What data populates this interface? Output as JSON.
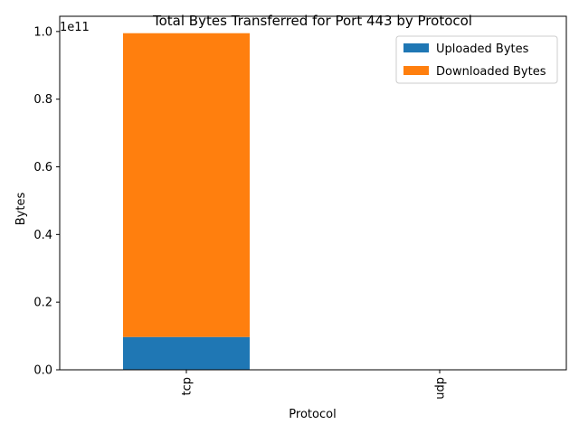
{
  "chart_data": {
    "type": "bar",
    "stacked": true,
    "title": "Total Bytes Transferred for Port 443 by Protocol",
    "xlabel": "Protocol",
    "ylabel": "Bytes",
    "categories": [
      "tcp",
      "udp"
    ],
    "series": [
      {
        "name": "Uploaded Bytes",
        "values": [
          9700000000,
          0
        ],
        "color": "#1f77b4"
      },
      {
        "name": "Downloaded Bytes",
        "values": [
          89800000000,
          0
        ],
        "color": "#ff7f0e"
      }
    ],
    "ylim": [
      0,
      104500000000
    ],
    "yticks": [
      0,
      20000000000,
      40000000000,
      60000000000,
      80000000000,
      100000000000
    ],
    "ytick_labels": [
      "0.0",
      "0.2",
      "0.4",
      "0.6",
      "0.8",
      "1.0"
    ],
    "y_offset_label": "1e11",
    "xtick_rotation": "vertical",
    "legend_position": "top-right",
    "grid": false
  }
}
